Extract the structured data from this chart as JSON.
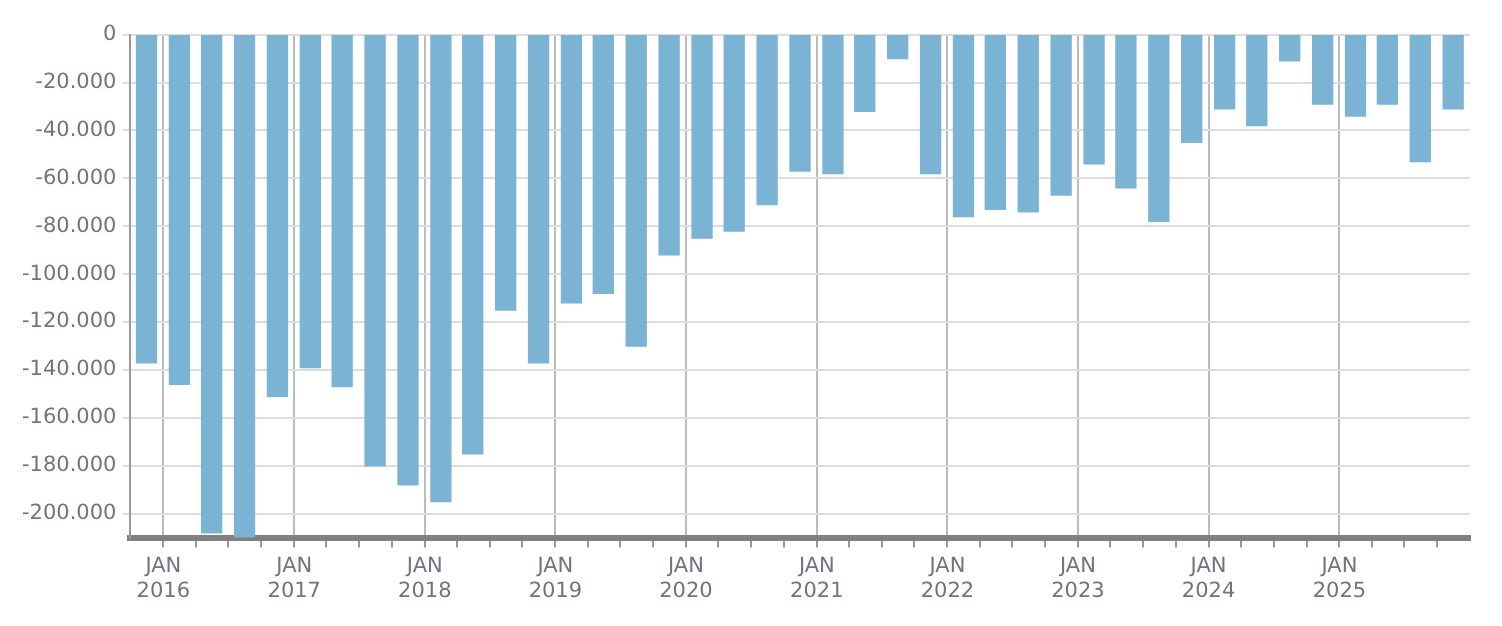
{
  "chart_data": {
    "type": "bar",
    "x": [
      "2015-11-15",
      "2016-02-15",
      "2016-05-15",
      "2016-08-15",
      "2016-11-15",
      "2017-02-15",
      "2017-05-15",
      "2017-08-15",
      "2017-11-15",
      "2018-02-15",
      "2018-05-15",
      "2018-08-15",
      "2018-11-15",
      "2019-02-15",
      "2019-05-15",
      "2019-08-15",
      "2019-11-15",
      "2020-02-15",
      "2020-05-15",
      "2020-08-15",
      "2020-11-15",
      "2021-02-15",
      "2021-05-15",
      "2021-08-15",
      "2021-11-15",
      "2022-02-15",
      "2022-05-15",
      "2022-08-15",
      "2022-11-15",
      "2023-02-15",
      "2023-05-15",
      "2023-08-15",
      "2023-11-15",
      "2024-02-15",
      "2024-05-15",
      "2024-08-15",
      "2024-11-15",
      "2025-02-15",
      "2025-05-15",
      "2025-08-15",
      "2025-11-15"
    ],
    "values": [
      -137000,
      -146000,
      -208000,
      -210000,
      -151000,
      -139000,
      -147000,
      -180000,
      -188000,
      -195000,
      -175000,
      -115000,
      -137000,
      -112000,
      -108000,
      -130000,
      -92000,
      -85000,
      -82000,
      -71000,
      -57000,
      -58000,
      -32000,
      -10000,
      -58000,
      -76000,
      -73000,
      -74000,
      -67000,
      -54000,
      -64000,
      -78000,
      -45000,
      -31000,
      -38000,
      -11000,
      -29000,
      -34000,
      -29000,
      -53000,
      -31000
    ],
    "color": "#7ab3d4",
    "xlim": [
      "2015-10",
      "2026-01"
    ],
    "xticks": [
      {
        "value": "2016-01",
        "label": "JAN\n2016"
      },
      {
        "value": "2016-04",
        "label": null
      },
      {
        "value": "2016-07",
        "label": null
      },
      {
        "value": "2016-10",
        "label": null
      },
      {
        "value": "2017-01",
        "label": "JAN\n2017"
      },
      {
        "value": "2017-04",
        "label": null
      },
      {
        "value": "2017-07",
        "label": null
      },
      {
        "value": "2017-10",
        "label": null
      },
      {
        "value": "2018-01",
        "label": "JAN\n2018"
      },
      {
        "value": "2018-04",
        "label": null
      },
      {
        "value": "2018-07",
        "label": null
      },
      {
        "value": "2018-10",
        "label": null
      },
      {
        "value": "2019-01",
        "label": "JAN\n2019"
      },
      {
        "value": "2019-04",
        "label": null
      },
      {
        "value": "2019-07",
        "label": null
      },
      {
        "value": "2019-10",
        "label": null
      },
      {
        "value": "2020-01",
        "label": "JAN\n2020"
      },
      {
        "value": "2020-04",
        "label": null
      },
      {
        "value": "2020-07",
        "label": null
      },
      {
        "value": "2020-10",
        "label": null
      },
      {
        "value": "2021-01",
        "label": "JAN\n2021"
      },
      {
        "value": "2021-04",
        "label": null
      },
      {
        "value": "2021-07",
        "label": null
      },
      {
        "value": "2021-10",
        "label": null
      },
      {
        "value": "2022-01",
        "label": "JAN\n2022"
      },
      {
        "value": "2022-04",
        "label": null
      },
      {
        "value": "2022-07",
        "label": null
      },
      {
        "value": "2022-10",
        "label": null
      },
      {
        "value": "2023-01",
        "label": "JAN\n2023"
      },
      {
        "value": "2023-04",
        "label": null
      },
      {
        "value": "2023-07",
        "label": null
      },
      {
        "value": "2023-10",
        "label": null
      },
      {
        "value": "2024-01",
        "label": "JAN\n2024"
      },
      {
        "value": "2024-04",
        "label": null
      },
      {
        "value": "2024-07",
        "label": null
      },
      {
        "value": "2024-10",
        "label": null
      },
      {
        "value": "2025-01",
        "label": "JAN\n2025"
      },
      {
        "value": "2025-04",
        "label": null
      },
      {
        "value": "2025-07",
        "label": null
      },
      {
        "value": "2025-10",
        "label": null
      }
    ],
    "ylim": [
      -210000,
      0
    ],
    "yticks": [
      0,
      {
        "value": -20000,
        "label": "-20.000"
      },
      {
        "value": -40000,
        "label": "-40.000"
      },
      {
        "value": -60000,
        "label": "-60.000"
      },
      {
        "value": -80000,
        "label": "-80.000"
      },
      {
        "value": -100000,
        "label": "-100.000"
      },
      {
        "value": -120000,
        "label": "-120.000"
      },
      {
        "value": -140000,
        "label": "-140.000"
      },
      {
        "value": -160000,
        "label": "-160.000"
      },
      {
        "value": -180000,
        "label": "-180.000"
      },
      {
        "value": -200000,
        "label": "-200.000"
      }
    ],
    "grid": true
  }
}
